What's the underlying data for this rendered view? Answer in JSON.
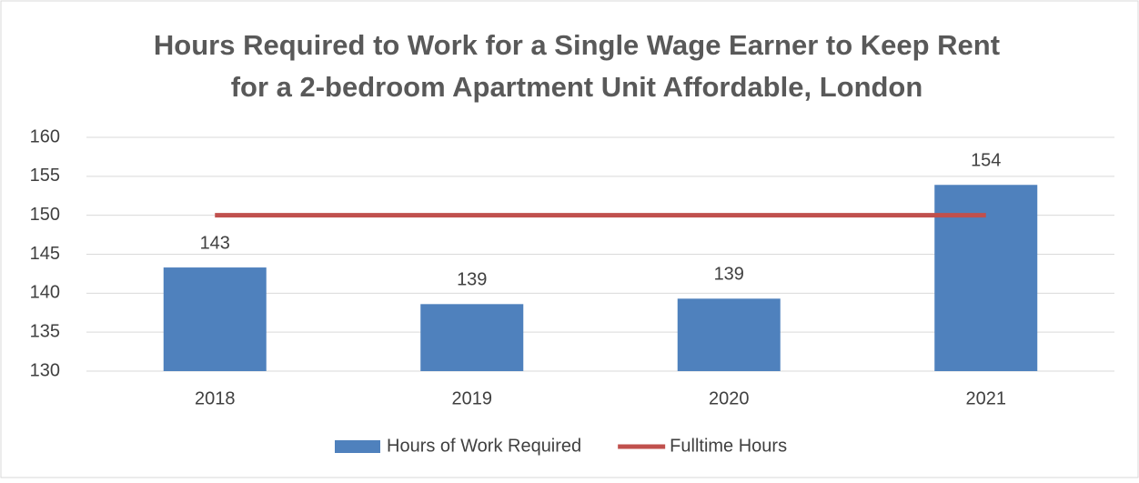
{
  "chart_data": {
    "type": "bar",
    "title": [
      "Hours Required to Work for a Single Wage Earner to Keep Rent",
      "for a 2-bedroom Apartment Unit Affordable, London"
    ],
    "categories": [
      "2018",
      "2019",
      "2020",
      "2021"
    ],
    "series": [
      {
        "name": "Hours of Work Required",
        "type": "bar",
        "color": "#4f81bd",
        "values": [
          143.3,
          138.6,
          139.3,
          153.9
        ],
        "value_labels": [
          "143",
          "139",
          "139",
          "154"
        ]
      },
      {
        "name": "Fulltime Hours",
        "type": "line",
        "color": "#c0504d",
        "values": [
          150,
          150,
          150,
          150
        ]
      }
    ],
    "ylim": [
      130,
      160
    ],
    "yticks": [
      130,
      135,
      140,
      145,
      150,
      155,
      160
    ],
    "grid": true,
    "legend": "bottom"
  }
}
